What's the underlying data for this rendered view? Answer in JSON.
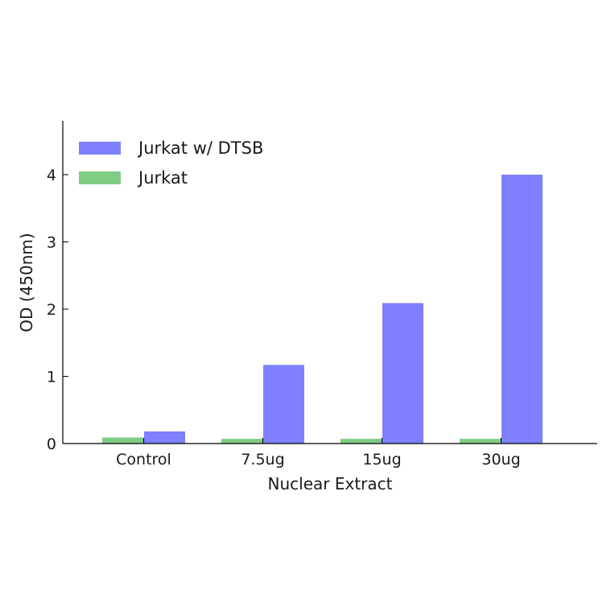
{
  "chart_data": {
    "type": "bar",
    "xlabel": "Nuclear Extract",
    "ylabel": "OD (450nm)",
    "categories": [
      "Control",
      "7.5ug",
      "15ug",
      "30ug"
    ],
    "series": [
      {
        "name": "Jurkat",
        "color": "#7fcc85",
        "values": [
          0.09,
          0.07,
          0.07,
          0.07
        ]
      },
      {
        "name": "Jurkat w/ DTSB",
        "color": "#7f7fff",
        "values": [
          0.18,
          1.17,
          2.09,
          4.0
        ]
      }
    ],
    "ylim": [
      0,
      4.8
    ],
    "yticks": [
      0,
      1,
      2,
      3,
      4
    ],
    "grid": false,
    "legend": {
      "placement": "top-left",
      "order": [
        "Jurkat w/ DTSB",
        "Jurkat"
      ]
    }
  }
}
